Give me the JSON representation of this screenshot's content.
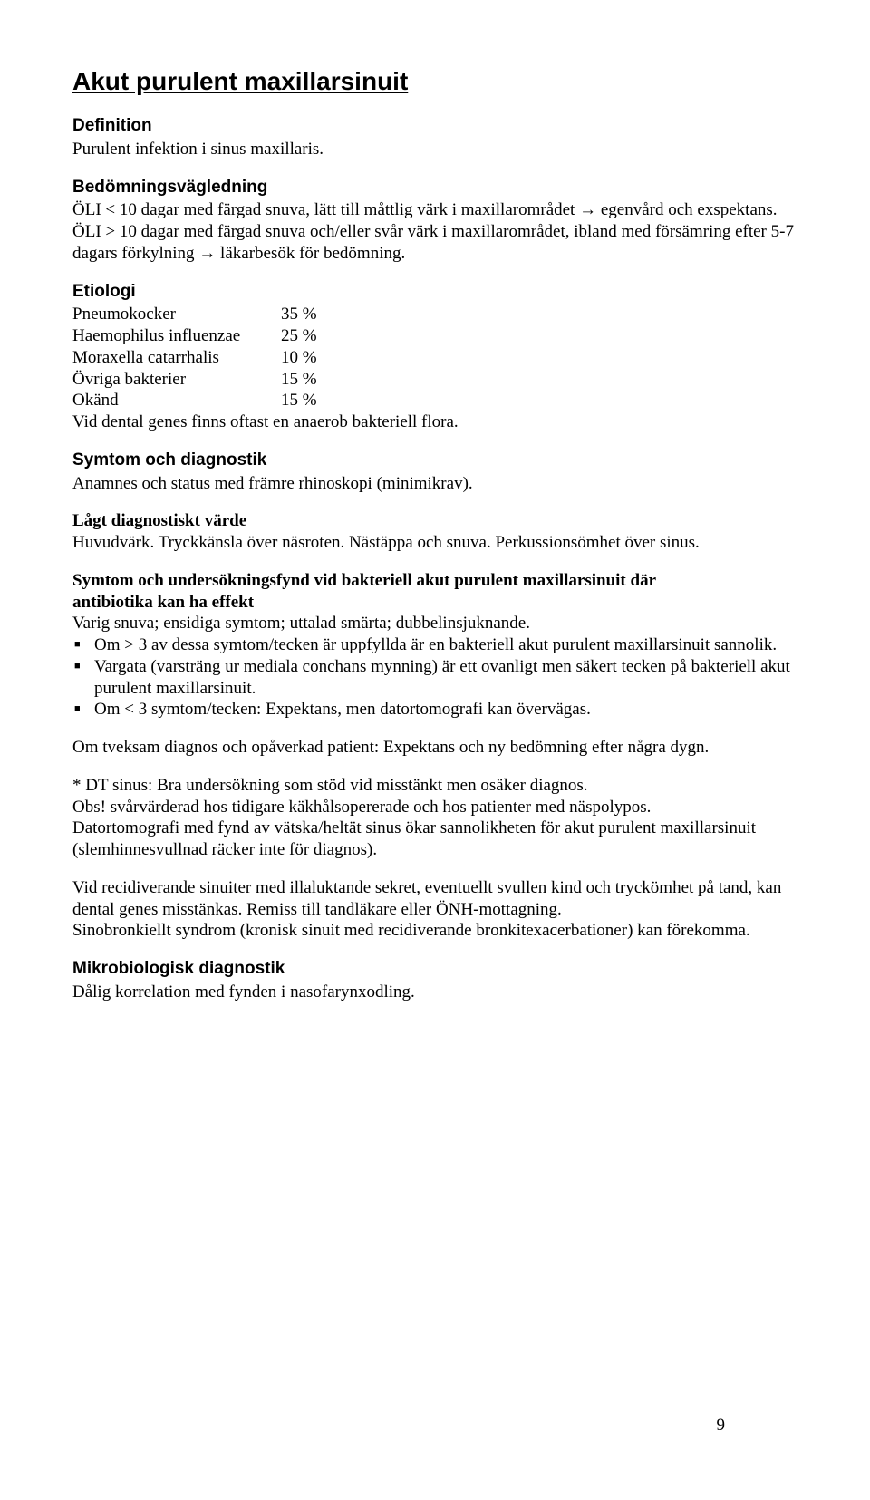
{
  "title": "Akut purulent maxillarsinuit",
  "sections": {
    "definition": {
      "heading": "Definition",
      "text": "Purulent infektion i sinus maxillaris."
    },
    "bedomning": {
      "heading": "Bedömningsvägledning",
      "line1": "ÖLI < 10 dagar med färgad snuva, lätt till måttlig värk i maxillarområdet → egenvård och exspektans.",
      "line2": "ÖLI > 10 dagar med färgad snuva och/eller svår värk i maxillarområdet, ibland med försämring efter 5-7 dagars förkylning → läkarbesök för bedömning."
    },
    "etiologi": {
      "heading": "Etiologi",
      "rows": [
        {
          "name": "Pneumokocker",
          "pct": "35 %"
        },
        {
          "name": "Haemophilus influenzae",
          "pct": "25 %"
        },
        {
          "name": "Moraxella catarrhalis",
          "pct": "10 %"
        },
        {
          "name": "Övriga bakterier",
          "pct": "15 %"
        },
        {
          "name": "Okänd",
          "pct": "15 %"
        }
      ],
      "note": "Vid dental genes finns oftast en anaerob bakteriell flora."
    },
    "symtom": {
      "heading": "Symtom och diagnostik",
      "text": "Anamnes och status med främre rhinoskopi (minimikrav)."
    },
    "lagt": {
      "heading": "Lågt diagnostiskt värde",
      "text": "Huvudvärk. Tryckkänsla över näsroten. Nästäppa och snuva. Perkussionsömhet över sinus."
    },
    "ab_effekt": {
      "heading1": "Symtom och undersökningsfynd vid bakteriell akut purulent maxillarsinuit där",
      "heading2": "antibiotika kan ha effekt",
      "intro": "Varig snuva; ensidiga symtom; uttalad smärta; dubbelinsjuknande.",
      "bullets": [
        "Om > 3 av dessa symtom/tecken är uppfyllda är en bakteriell akut purulent maxillarsinuit sannolik.",
        "Vargata (varsträng ur mediala conchans mynning) är ett ovanligt men säkert tecken på bakteriell akut purulent maxillarsinuit.",
        "Om < 3 symtom/tecken: Expektans, men datortomografi kan övervägas."
      ]
    },
    "tveksam": "Om tveksam diagnos och opåverkad patient: Expektans och ny bedömning efter några dygn.",
    "dt": {
      "l1": "* DT sinus: Bra undersökning som stöd vid misstänkt men osäker diagnos.",
      "l2": "Obs! svårvärderad hos tidigare käkhålsopererade och hos patienter med näspolypos.",
      "l3": "Datortomografi med fynd av vätska/heltät sinus ökar sannolikheten för akut purulent maxillarsinuit (slemhinnesvullnad räcker inte för diagnos)."
    },
    "recidiv": {
      "l1": "Vid recidiverande sinuiter med illaluktande sekret, eventuellt svullen kind och tryckömhet på tand, kan dental genes misstänkas. Remiss till tandläkare eller ÖNH-mottagning.",
      "l2": "Sinobronkiellt syndrom (kronisk sinuit med recidiverande bronkitexacerbationer) kan förekomma."
    },
    "mikro": {
      "heading": "Mikrobiologisk diagnostik",
      "text": "Dålig korrelation med fynden i nasofarynxodling."
    }
  },
  "page_number": "9"
}
